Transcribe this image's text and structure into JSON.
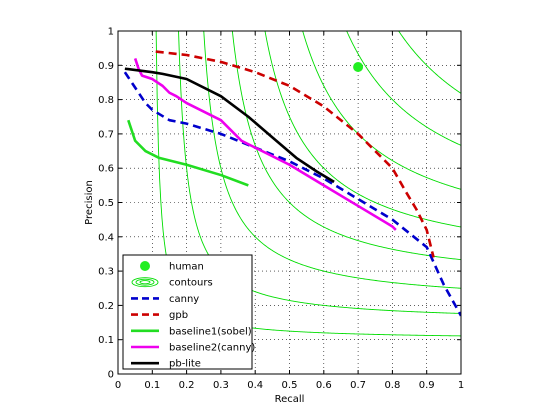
{
  "chart_data": {
    "type": "line",
    "title": "",
    "xlabel": "Recall",
    "ylabel": "Precision",
    "xlim": [
      0,
      1
    ],
    "ylim": [
      0,
      1
    ],
    "grid": true,
    "legend_position": "bottom-left",
    "xticks": [
      "0",
      "0.1",
      "0.2",
      "0.3",
      "0.4",
      "0.5",
      "0.6",
      "0.7",
      "0.8",
      "0.9",
      "1"
    ],
    "yticks": [
      "0",
      "0.1",
      "0.2",
      "0.3",
      "0.4",
      "0.5",
      "0.6",
      "0.7",
      "0.8",
      "0.9",
      "1"
    ],
    "contour_levels": [
      0.2,
      0.3,
      0.4,
      0.5,
      0.6,
      0.7,
      0.8,
      0.9
    ],
    "contour_color": "#00dd00",
    "human": {
      "name": "human",
      "x": 0.7,
      "y": 0.895,
      "color": "#22ee22"
    },
    "contours_label": "contours",
    "series": [
      {
        "name": "canny",
        "color": "#0000cc",
        "dash": "dashed",
        "x": [
          0.02,
          0.04,
          0.06,
          0.08,
          0.1,
          0.15,
          0.2,
          0.3,
          0.4,
          0.5,
          0.6,
          0.7,
          0.8,
          0.85,
          0.9,
          0.95,
          1.0
        ],
        "y": [
          0.88,
          0.85,
          0.82,
          0.79,
          0.77,
          0.74,
          0.73,
          0.7,
          0.66,
          0.62,
          0.57,
          0.51,
          0.45,
          0.41,
          0.37,
          0.26,
          0.17
        ]
      },
      {
        "name": "gpb",
        "color": "#cc0000",
        "dash": "dashed",
        "x": [
          0.11,
          0.2,
          0.3,
          0.4,
          0.5,
          0.6,
          0.7,
          0.75,
          0.8,
          0.84,
          0.87,
          0.9,
          0.92
        ],
        "y": [
          0.94,
          0.93,
          0.91,
          0.88,
          0.84,
          0.78,
          0.7,
          0.65,
          0.6,
          0.53,
          0.48,
          0.42,
          0.34
        ]
      },
      {
        "name": "baseline1(sobel)",
        "color": "#22dd22",
        "dash": "solid",
        "x": [
          0.03,
          0.05,
          0.08,
          0.12,
          0.2,
          0.3,
          0.38
        ],
        "y": [
          0.74,
          0.68,
          0.65,
          0.63,
          0.61,
          0.58,
          0.55
        ]
      },
      {
        "name": "baseline2(canny)",
        "color": "#ee00ee",
        "dash": "solid",
        "x": [
          0.05,
          0.06,
          0.07,
          0.1,
          0.13,
          0.15,
          0.17,
          0.2,
          0.3,
          0.36,
          0.4,
          0.5,
          0.6,
          0.7,
          0.8,
          0.81
        ],
        "y": [
          0.92,
          0.89,
          0.87,
          0.86,
          0.84,
          0.82,
          0.81,
          0.79,
          0.74,
          0.68,
          0.66,
          0.61,
          0.55,
          0.49,
          0.43,
          0.42
        ]
      },
      {
        "name": "pb-lite",
        "color": "#000000",
        "dash": "solid",
        "x": [
          0.02,
          0.06,
          0.1,
          0.13,
          0.2,
          0.3,
          0.38,
          0.45,
          0.52,
          0.58,
          0.63
        ],
        "y": [
          0.89,
          0.885,
          0.88,
          0.875,
          0.86,
          0.81,
          0.75,
          0.69,
          0.63,
          0.59,
          0.56
        ]
      }
    ]
  }
}
